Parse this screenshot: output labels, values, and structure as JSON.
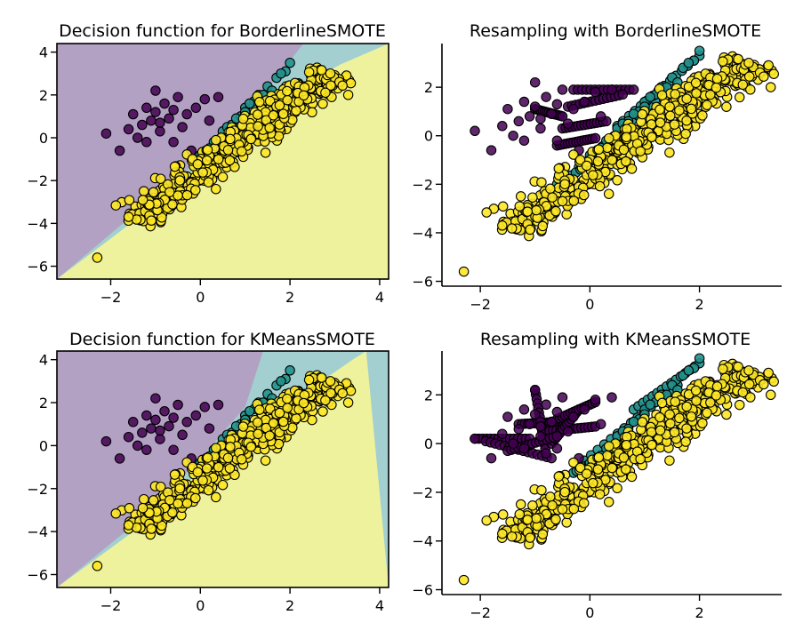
{
  "colors": {
    "class_0": "#440154",
    "class_1": "#21918c",
    "class_2": "#fde725",
    "region_0": "#b2a1c3",
    "region_1": "#a3cfd0",
    "region_2": "#eef29d"
  },
  "chart_data": [
    {
      "type": "scatter",
      "title": "Decision function for BorderlineSMOTE",
      "xlim": [
        -3.2,
        4.2
      ],
      "ylim": [
        -6.6,
        4.4
      ],
      "xticks": [
        -2,
        0,
        2,
        4
      ],
      "yticks": [
        -6,
        -4,
        -2,
        0,
        2,
        4
      ],
      "decision_regions": true,
      "region_boundaries": {
        "class0_class1": [
          [
            -3.2,
            -6.6
          ],
          [
            -0.65,
            -2.1
          ],
          [
            0.7,
            0.3
          ],
          [
            1.7,
            2.8
          ],
          [
            2.3,
            4.4
          ]
        ],
        "class1_class2": [
          [
            -3.2,
            -6.6
          ],
          [
            -1.3,
            -3.6
          ],
          [
            0.2,
            -0.9
          ],
          [
            1.6,
            1.6
          ],
          [
            3.1,
            3.4
          ],
          [
            4.2,
            4.4
          ]
        ]
      },
      "series": [
        {
          "name": "class 0",
          "class": 0,
          "style": "pattern",
          "pattern": "orig0"
        },
        {
          "name": "class 1",
          "class": 1,
          "style": "pattern",
          "pattern": "orig1"
        },
        {
          "name": "class 2",
          "class": 2,
          "style": "pattern",
          "pattern": "orig2"
        }
      ]
    },
    {
      "type": "scatter",
      "title": "Resampling with BorderlineSMOTE",
      "xlim": [
        -2.7,
        3.5
      ],
      "ylim": [
        -6.2,
        3.8
      ],
      "xticks": [
        -2,
        0,
        2
      ],
      "yticks": [
        -6,
        -4,
        -2,
        0,
        2
      ],
      "decision_regions": false,
      "series": [
        {
          "name": "class 0 synthetic",
          "class": 0,
          "style": "segments",
          "segments": [
            [
              -0.3,
              1.9,
              0.8,
              1.9
            ],
            [
              -0.4,
              1.2,
              0.6,
              1.7
            ],
            [
              -0.5,
              0.3,
              0.3,
              0.6
            ],
            [
              -0.6,
              -0.4,
              0.1,
              -0.1
            ],
            [
              -1.0,
              1.1,
              -0.5,
              0.8
            ]
          ]
        },
        {
          "name": "class 1 synthetic",
          "class": 1,
          "style": "segments",
          "segments": [
            [
              -0.2,
              -1.3,
              1.3,
              1.7
            ],
            [
              0.5,
              0.4,
              2.0,
              3.3
            ],
            [
              -0.6,
              -2.0,
              0.6,
              -0.3
            ]
          ]
        },
        {
          "name": "class 0",
          "class": 0,
          "style": "pattern",
          "pattern": "orig0"
        },
        {
          "name": "class 1",
          "class": 1,
          "style": "pattern",
          "pattern": "orig1"
        },
        {
          "name": "class 2",
          "class": 2,
          "style": "pattern",
          "pattern": "orig2"
        }
      ]
    },
    {
      "type": "scatter",
      "title": "Decision function for KMeansSMOTE",
      "xlim": [
        -3.2,
        4.2
      ],
      "ylim": [
        -6.6,
        4.4
      ],
      "xticks": [
        -2,
        0,
        2,
        4
      ],
      "yticks": [
        -6,
        -4,
        -2,
        0,
        2,
        4
      ],
      "decision_regions": true,
      "region_boundaries": {
        "class0_class1": [
          [
            -3.2,
            -6.6
          ],
          [
            -1.2,
            -3.2
          ],
          [
            0.0,
            -0.6
          ],
          [
            1.0,
            1.8
          ],
          [
            1.4,
            4.4
          ]
        ],
        "class1_class2": [
          [
            -3.2,
            -6.6
          ],
          [
            -1.3,
            -3.7
          ],
          [
            0.3,
            -0.6
          ],
          [
            1.8,
            1.7
          ],
          [
            3.4,
            4.0
          ],
          [
            3.7,
            4.4
          ]
        ]
      },
      "series": [
        {
          "name": "class 0",
          "class": 0,
          "style": "pattern",
          "pattern": "orig0"
        },
        {
          "name": "class 1",
          "class": 1,
          "style": "pattern",
          "pattern": "orig1"
        },
        {
          "name": "class 2",
          "class": 2,
          "style": "pattern",
          "pattern": "orig2"
        }
      ]
    },
    {
      "type": "scatter",
      "title": "Resampling with KMeansSMOTE",
      "xlim": [
        -2.7,
        3.5
      ],
      "ylim": [
        -6.2,
        3.8
      ],
      "xticks": [
        -2,
        0,
        2
      ],
      "yticks": [
        -6,
        -4,
        -2,
        0,
        2
      ],
      "decision_regions": false,
      "series": [
        {
          "name": "class 0 synthetic",
          "class": 0,
          "style": "segments",
          "segments": [
            [
              -2.1,
              0.2,
              -1.1,
              0.2
            ],
            [
              -1.9,
              0.1,
              -0.7,
              -0.6
            ],
            [
              -1.3,
              0.8,
              -0.5,
              0.9
            ],
            [
              -1.0,
              2.2,
              -0.8,
              -0.4
            ],
            [
              -0.8,
              0.5,
              0.1,
              0.7
            ],
            [
              -0.7,
              0.0,
              -0.2,
              1.4
            ],
            [
              -0.6,
              1.0,
              0.1,
              1.7
            ],
            [
              -1.5,
              -0.3,
              -0.6,
              0.3
            ]
          ]
        },
        {
          "name": "class 1 synthetic",
          "class": 1,
          "style": "segments",
          "segments": [
            [
              -0.1,
              -0.7,
              1.6,
              2.4
            ],
            [
              0.8,
              1.4,
              2.0,
              3.3
            ],
            [
              -0.3,
              -1.2,
              0.5,
              -0.2
            ]
          ]
        },
        {
          "name": "class 0",
          "class": 0,
          "style": "pattern",
          "pattern": "orig0"
        },
        {
          "name": "class 1",
          "class": 1,
          "style": "pattern",
          "pattern": "orig1"
        },
        {
          "name": "class 2",
          "class": 2,
          "style": "pattern",
          "pattern": "orig2"
        }
      ]
    }
  ],
  "patterns": {
    "orig0": [
      [
        -2.1,
        0.2
      ],
      [
        -1.8,
        -0.6
      ],
      [
        -1.6,
        0.4
      ],
      [
        -1.5,
        1.1
      ],
      [
        -1.4,
        0.0
      ],
      [
        -1.3,
        0.6
      ],
      [
        -1.2,
        1.4
      ],
      [
        -1.1,
        0.8
      ],
      [
        -1.0,
        2.2
      ],
      [
        -1.0,
        1.2
      ],
      [
        -0.9,
        0.3
      ],
      [
        -0.8,
        1.6
      ],
      [
        -0.7,
        0.9
      ],
      [
        -0.6,
        -0.2
      ],
      [
        -0.5,
        1.9
      ],
      [
        -0.4,
        0.5
      ],
      [
        -0.3,
        1.1
      ],
      [
        -0.2,
        -0.6
      ],
      [
        -0.1,
        1.4
      ],
      [
        0.1,
        1.8
      ],
      [
        0.2,
        0.8
      ],
      [
        0.4,
        1.9
      ],
      [
        -1.2,
        -0.2
      ],
      [
        -0.9,
        0.7
      ],
      [
        -0.6,
        1.3
      ]
    ],
    "orig1": [
      [
        0.0,
        -0.8
      ],
      [
        0.3,
        -0.2
      ],
      [
        0.5,
        0.3
      ],
      [
        0.7,
        0.6
      ],
      [
        0.9,
        1.0
      ],
      [
        1.0,
        1.4
      ],
      [
        1.2,
        1.7
      ],
      [
        1.3,
        2.0
      ],
      [
        1.5,
        2.4
      ],
      [
        1.7,
        2.8
      ],
      [
        1.9,
        3.1
      ],
      [
        2.0,
        3.5
      ],
      [
        1.8,
        3.0
      ],
      [
        1.6,
        2.2
      ],
      [
        1.1,
        1.6
      ],
      [
        0.8,
        0.9
      ],
      [
        0.6,
        0.5
      ],
      [
        0.2,
        -0.5
      ],
      [
        1.4,
        2.0
      ],
      [
        1.0,
        1.2
      ]
    ],
    "orig2": {
      "base": [
        -1.5,
        -4.0
      ],
      "dir": [
        4.4,
        7.0
      ],
      "spread": [
        0.45,
        -0.3
      ],
      "count": 520,
      "seed": 17,
      "extra": [
        [
          -2.3,
          -5.6
        ],
        [
          3.3,
          2.0
        ],
        [
          -1.6,
          -3.7
        ],
        [
          2.9,
          3.0
        ]
      ]
    }
  }
}
